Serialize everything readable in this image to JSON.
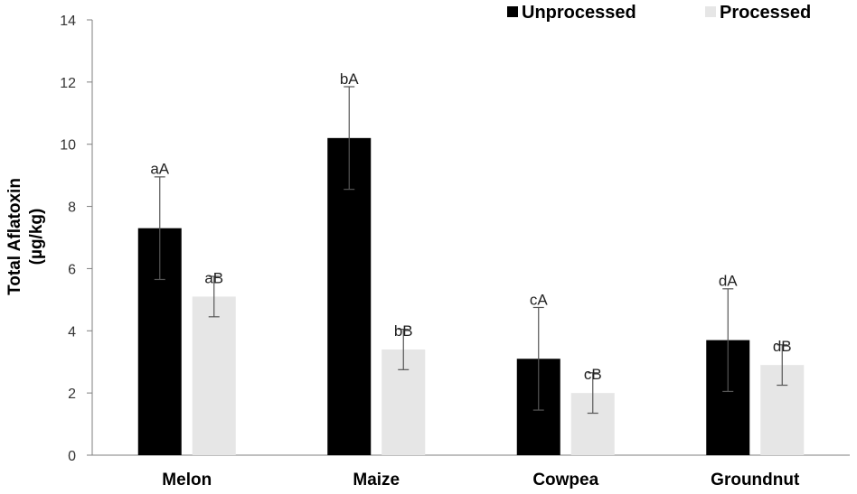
{
  "chart_data": {
    "type": "bar",
    "title": "",
    "xlabel": "",
    "ylabel": [
      "Total Aflatoxin",
      "(µg/kg)"
    ],
    "ylim": [
      0,
      14
    ],
    "yticks": [
      "0",
      "2",
      "4",
      "6",
      "8",
      "10",
      "12",
      "14"
    ],
    "categories": [
      "Melon",
      "Maize",
      "Cowpea",
      "Groundnut"
    ],
    "legend_position": "top-right",
    "grid": false,
    "series": [
      {
        "name": "Unprocessed",
        "color": "#000000",
        "values": [
          7.3,
          10.2,
          3.1,
          3.7
        ],
        "errors": [
          1.65,
          1.65,
          1.65,
          1.65
        ],
        "labels": [
          "aA",
          "bA",
          "cA",
          "dA"
        ]
      },
      {
        "name": "Processed",
        "color": "#e6e6e6",
        "values": [
          5.1,
          3.4,
          2.0,
          2.9
        ],
        "errors": [
          0.65,
          0.65,
          0.65,
          0.65
        ],
        "labels": [
          "aB",
          "bB",
          "cB",
          "dB"
        ]
      }
    ]
  }
}
